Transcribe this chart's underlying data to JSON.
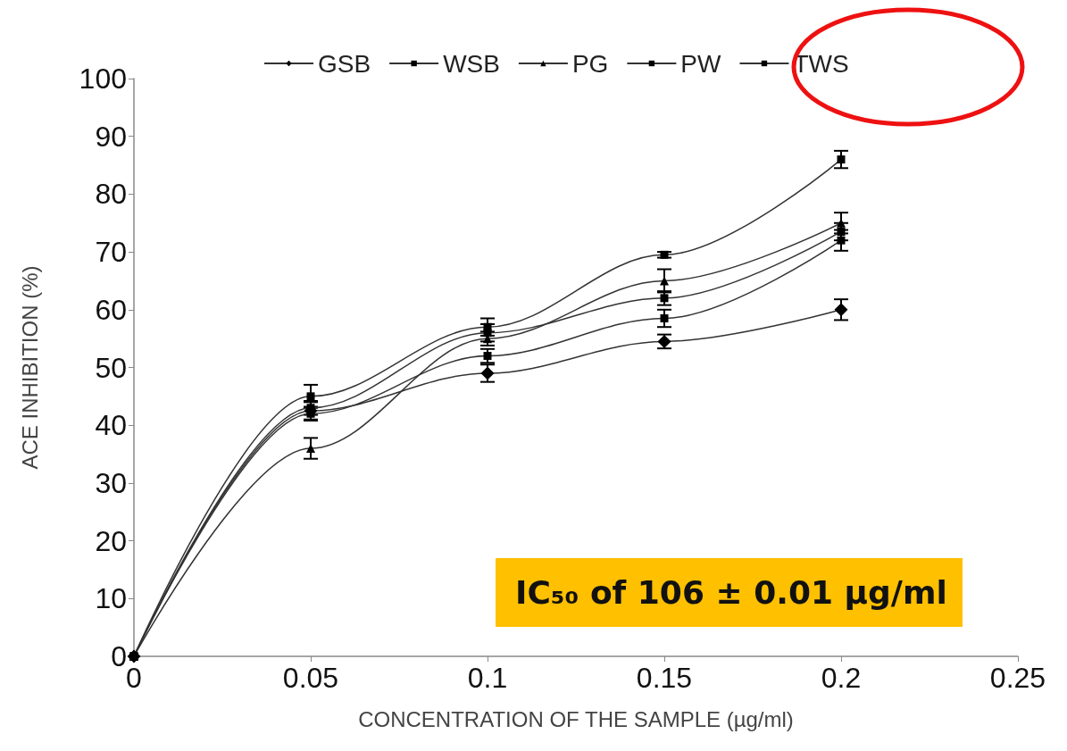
{
  "chart_data": {
    "type": "line",
    "xlabel": "CONCENTRATION OF THE SAMPLE (µg/ml)",
    "ylabel": "ACE INHIBITION (%)",
    "x": [
      0,
      0.05,
      0.1,
      0.15,
      0.2
    ],
    "series": [
      {
        "name": "GSB",
        "color": "#333333",
        "marker": "diamond",
        "values": [
          0,
          42.5,
          49,
          54.5,
          60
        ],
        "errors": [
          null,
          1.5,
          1.5,
          1.2,
          1.8
        ]
      },
      {
        "name": "WSB",
        "color": "#333333",
        "marker": "square",
        "values": [
          0,
          42,
          52,
          58.5,
          72
        ],
        "errors": [
          null,
          1.2,
          1.2,
          1.5,
          1.8
        ]
      },
      {
        "name": "PG",
        "color": "#333333",
        "marker": "triangle",
        "values": [
          0,
          36,
          55,
          65,
          75
        ],
        "errors": [
          null,
          1.8,
          1.2,
          2,
          1.8
        ]
      },
      {
        "name": "PW",
        "color": "#333333",
        "marker": "square",
        "values": [
          0,
          43,
          56,
          62,
          73.5
        ],
        "errors": [
          null,
          1.2,
          1.5,
          1.2,
          1.5
        ]
      },
      {
        "name": "TWS",
        "color": "#333333",
        "marker": "square",
        "values": [
          0,
          45,
          57,
          69.5,
          86
        ],
        "errors": [
          null,
          2,
          1.5,
          0.5,
          1.5
        ]
      }
    ],
    "xlim": [
      0,
      0.25
    ],
    "xticks": [
      0,
      0.05,
      0.1,
      0.15,
      0.2,
      0.25
    ],
    "ylim": [
      0,
      100
    ],
    "yticks": [
      0,
      10,
      20,
      30,
      40,
      50,
      60,
      70,
      80,
      90,
      100
    ],
    "grid": false,
    "legend": "top",
    "line_style": "solid",
    "annotations": [
      "IC₅₀ of 106 ± 0.01 µg/ml"
    ]
  }
}
